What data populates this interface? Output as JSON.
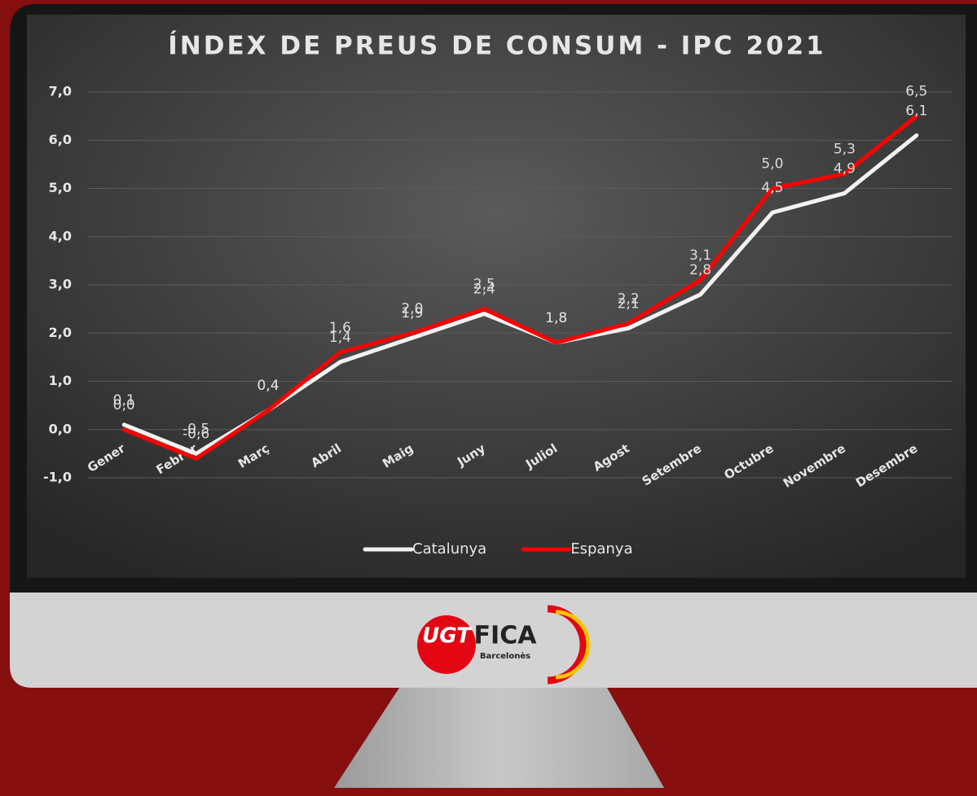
{
  "chart_data": {
    "type": "line",
    "title": "ÍNDEX DE PREUS DE CONSUM - IPC 2021",
    "categories": [
      "Gener",
      "Febrer",
      "Març",
      "Abril",
      "Maig",
      "Juny",
      "Juliol",
      "Agost",
      "Setembre",
      "Octubre",
      "Novembre",
      "Desembre"
    ],
    "series": [
      {
        "name": "Catalunya",
        "color": "#f2f2f2",
        "values": [
          0.1,
          -0.5,
          0.4,
          1.4,
          1.9,
          2.4,
          1.8,
          2.1,
          2.8,
          4.5,
          4.9,
          6.1
        ],
        "value_labels": [
          "0,1",
          "-0,5",
          "0,4",
          "1,4",
          "1,9",
          "2,4",
          "1,8",
          "2,1",
          "2,8",
          "4,5",
          "4,9",
          "6,1"
        ]
      },
      {
        "name": "Espanya",
        "color": "#ff0000",
        "values": [
          0.0,
          -0.6,
          0.4,
          1.6,
          2.0,
          2.5,
          1.8,
          2.2,
          3.1,
          5.0,
          5.3,
          6.5
        ],
        "value_labels": [
          "0,0",
          "-0,6",
          "0,4",
          "1,6",
          "2,0",
          "2,5",
          "1,8",
          "2,2",
          "3,1",
          "5,0",
          "5,3",
          "6,5"
        ]
      }
    ],
    "ylim": [
      -1,
      7
    ],
    "yticks": [
      {
        "value": -1,
        "label": "-1,0"
      },
      {
        "value": 0,
        "label": "0,0"
      },
      {
        "value": 1,
        "label": "1,0"
      },
      {
        "value": 2,
        "label": "2,0"
      },
      {
        "value": 3,
        "label": "3,0"
      },
      {
        "value": 4,
        "label": "4,0"
      },
      {
        "value": 5,
        "label": "5,0"
      },
      {
        "value": 6,
        "label": "6,0"
      },
      {
        "value": 7,
        "label": "7,0"
      }
    ],
    "grid": true,
    "legend": "bottom"
  },
  "logo": {
    "ugt": "UGT",
    "fica": "FICA",
    "place": "Barcelonès"
  }
}
